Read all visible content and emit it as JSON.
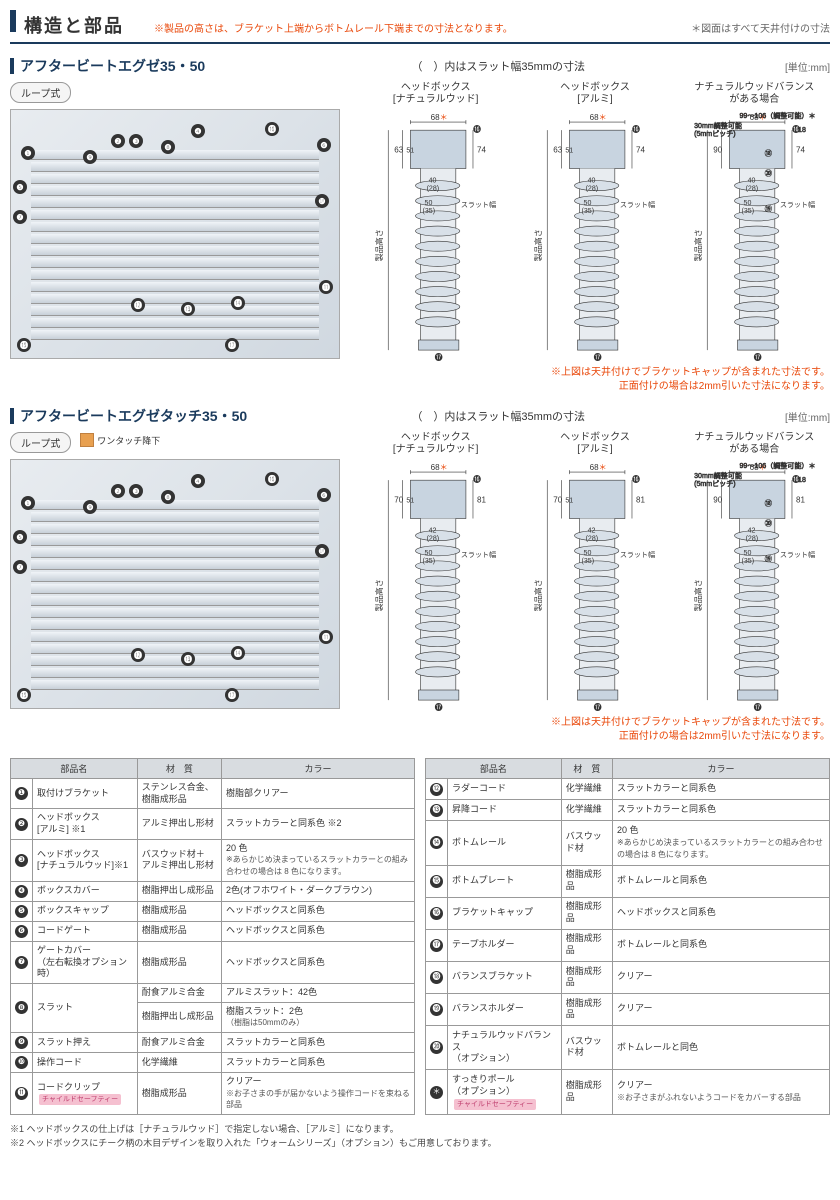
{
  "header": {
    "title": "構造と部品",
    "red_note": "※製品の高さは、ブラケット上端からボトムレール下端までの寸法となります。",
    "gray_note": "＊図面はすべて天井付けの寸法"
  },
  "section1": {
    "title": "アフタービートエグゼ35・50",
    "paren": "（　）内はスラット幅35mmの寸法",
    "unit": "[単位:mm]",
    "loop": "ループ式",
    "cs": [
      {
        "title": "ヘッドボックス\n[ナチュラルウッド]",
        "dims": {
          "w": "68",
          "h1": "63",
          "h2": "51",
          "h3": "74",
          "slat": "50\n(35)",
          "sh": "40\n(28)",
          "label": "スラット幅"
        }
      },
      {
        "title": "ヘッドボックス\n[アルミ]",
        "dims": {
          "w": "68",
          "h1": "63",
          "h2": "51",
          "h3": "74",
          "slat": "50\n(35)",
          "sh": "40\n(28)",
          "label": "スラット幅"
        }
      },
      {
        "title": "ナチュラルウッドバランス\nがある場合",
        "dims": {
          "w": "68",
          "range": "99〜106（調整可能）",
          "adj": "30mm調整可能\n(5mmピッチ)",
          "h1": "90",
          "h3": "74",
          "slat": "50\n(35)",
          "sh": "40\n(28)",
          "label": "スラット幅"
        }
      }
    ],
    "red_caption": "※上図は天井付けでブラケットキャップが含まれた寸法です。\n正面付けの場合は2mm引いた寸法になります。"
  },
  "section2": {
    "title": "アフタービートエグゼタッチ35・50",
    "onetouch": "ワンタッチ降下",
    "cs": [
      {
        "title": "ヘッドボックス\n[ナチュラルウッド]",
        "dims": {
          "w": "68",
          "h1": "70",
          "h2": "51",
          "h3": "81",
          "slat": "50\n(35)",
          "sh": "42\n(28)",
          "label": "スラット幅"
        }
      },
      {
        "title": "ヘッドボックス\n[アルミ]",
        "dims": {
          "w": "68",
          "h1": "70",
          "h2": "51",
          "h3": "81",
          "slat": "50\n(35)",
          "sh": "42\n(28)",
          "label": "スラット幅"
        }
      },
      {
        "title": "ナチュラルウッドバランス\nがある場合",
        "dims": {
          "w": "68",
          "range": "99〜106（調整可能）",
          "adj": "30mm調整可能\n(5mmピッチ)",
          "h1": "90",
          "h3": "81",
          "slat": "50\n(35)",
          "sh": "42\n(28)",
          "label": "スラット幅"
        }
      }
    ]
  },
  "table": {
    "headers": [
      "部品名",
      "材　質",
      "カラー"
    ],
    "left": [
      {
        "n": "❶",
        "name": "取付けブラケット",
        "mat": "ステンレス合金、樹脂成形品",
        "col": "樹脂部クリアー"
      },
      {
        "n": "❷",
        "name": "ヘッドボックス\n[アルミ] ※1",
        "mat": "アルミ押出し形材",
        "col": "スラットカラーと同系色 ※2"
      },
      {
        "n": "❸",
        "name": "ヘッドボックス\n[ナチュラルウッド]※1",
        "mat": "バスウッド材＋\nアルミ押出し形材",
        "col": "20 色\n※あらかじめ決まっているスラットカラーとの組み合わせの場合は 8 色になります。"
      },
      {
        "n": "❹",
        "name": "ボックスカバー",
        "mat": "樹脂押出し成形品",
        "col": "2色(オフホワイト・ダークブラウン)"
      },
      {
        "n": "❺",
        "name": "ボックスキャップ",
        "mat": "樹脂成形品",
        "col": "ヘッドボックスと同系色"
      },
      {
        "n": "❻",
        "name": "コードゲート",
        "mat": "樹脂成形品",
        "col": "ヘッドボックスと同系色"
      },
      {
        "n": "❼",
        "name": "ゲートカバー\n（左右転換オプション時）",
        "mat": "樹脂成形品",
        "col": "ヘッドボックスと同系色"
      },
      {
        "n": "❽",
        "name": "スラット",
        "mat": "耐食アルミ合金",
        "col": "アルミスラット：42色",
        "mat2": "樹脂押出し成形品",
        "col2": "樹脂スラット：2色\n（樹脂は50mmのみ）"
      },
      {
        "n": "❾",
        "name": "スラット押え",
        "mat": "耐食アルミ合金",
        "col": "スラットカラーと同系色"
      },
      {
        "n": "❿",
        "name": "操作コード",
        "mat": "化学繊維",
        "col": "スラットカラーと同系色"
      },
      {
        "n": "⓫",
        "name": "コードクリップ",
        "safety": true,
        "mat": "樹脂成形品",
        "col": "クリアー\n※お子さまの手が届かないよう操作コードを束ねる部品"
      }
    ],
    "right": [
      {
        "n": "⓬",
        "name": "ラダーコード",
        "mat": "化学繊維",
        "col": "スラットカラーと同系色"
      },
      {
        "n": "⓭",
        "name": "昇降コード",
        "mat": "化学繊維",
        "col": "スラットカラーと同系色"
      },
      {
        "n": "⓮",
        "name": "ボトムレール",
        "mat": "バスウッド材",
        "col": "20 色\n※あらかじめ決まっているスラットカラーとの組み合わせの場合は 8 色になります。"
      },
      {
        "n": "⓯",
        "name": "ボトムプレート",
        "mat": "樹脂成形品",
        "col": "ボトムレールと同系色"
      },
      {
        "n": "⓰",
        "name": "ブラケットキャップ",
        "mat": "樹脂成形品",
        "col": "ヘッドボックスと同系色"
      },
      {
        "n": "⓱",
        "name": "テープホルダー",
        "mat": "樹脂成形品",
        "col": "ボトムレールと同系色"
      },
      {
        "n": "⓲",
        "name": "バランスブラケット",
        "mat": "樹脂成形品",
        "col": "クリアー"
      },
      {
        "n": "⓳",
        "name": "バランスホルダー",
        "mat": "樹脂成形品",
        "col": "クリアー"
      },
      {
        "n": "⓴",
        "name": "ナチュラルウッドバランス\n（オプション）",
        "mat": "バスウッド材",
        "col": "ボトムレールと同色"
      },
      {
        "n": "＊",
        "name": "すっきりポール\n（オプション）",
        "safety": true,
        "mat": "樹脂成形品",
        "col": "クリアー\n※お子さまがふれないようコードをカバーする部品"
      }
    ]
  },
  "footnotes": [
    "※1 ヘッドボックスの仕上げは［ナチュラルウッド］で指定しない場合、［アルミ］になります。",
    "※2 ヘッドボックスにチーク柄の木目デザインを取り入れた「ウォームシリーズ」（オプション）もご用意しております。"
  ],
  "safety_label": "チャイルドセーフティー",
  "height_label": "製品高さ"
}
